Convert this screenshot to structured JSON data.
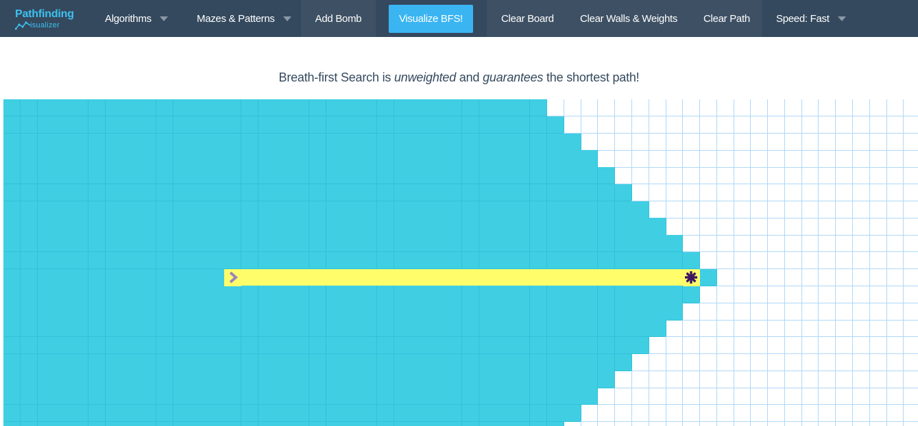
{
  "navbar": {
    "brand_line1": "Pathfinding",
    "brand_line2": "isualizer",
    "algorithms_label": "Algorithms",
    "mazes_label": "Mazes & Patterns",
    "add_bomb_label": "Add Bomb",
    "visualize_label": "Visualize BFS!",
    "clear_board_label": "Clear Board",
    "clear_walls_label": "Clear Walls & Weights",
    "clear_path_label": "Clear Path",
    "speed_label": "Speed: Fast"
  },
  "tagline": {
    "part1": "Breath-first Search is ",
    "em1": "unweighted",
    "part2": " and ",
    "em2": "guarantees",
    "part3": " the shortest path!"
  },
  "board": {
    "visited_color": "#40cee3",
    "path_color": "#fffe6a",
    "grid_line_color": "#afd8f8",
    "start_icon": "chevron-right-icon",
    "target_icon": "asterisk-target-icon",
    "start_cell": [
      10,
      13
    ],
    "target_cell": [
      10,
      40
    ],
    "visited_frontier": [
      31,
      32,
      33,
      34,
      35,
      36,
      37,
      38,
      39,
      40,
      41,
      40,
      39,
      38,
      37,
      36,
      35,
      34,
      33,
      32
    ]
  },
  "colors": {
    "navbar_bg": "#34495e",
    "accent": "#3ab5f2",
    "start": "#9c85b9",
    "target": "#3d1860"
  }
}
